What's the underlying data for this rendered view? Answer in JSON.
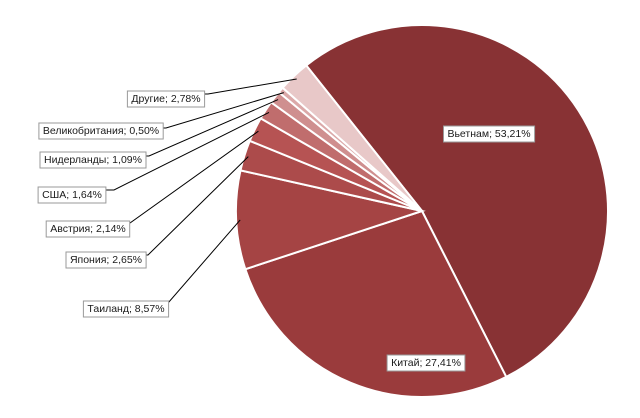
{
  "chart_data": {
    "type": "pie",
    "slices": [
      {
        "label": "Вьетнам; 53,21%",
        "name": "Вьетнам",
        "value": 53.21,
        "color": "#883234"
      },
      {
        "label": "Китай; 27,41%",
        "name": "Китай",
        "value": 27.41,
        "color": "#9a3b3c"
      },
      {
        "label": "Таиланд; 8,57%",
        "name": "Таиланд",
        "value": 8.57,
        "color": "#a54444"
      },
      {
        "label": "Япония; 2,65%",
        "name": "Япония",
        "value": 2.65,
        "color": "#ac4b4b"
      },
      {
        "label": "Австрия; 2,14%",
        "name": "Австрия",
        "value": 2.14,
        "color": "#b65353"
      },
      {
        "label": "США; 1,64%",
        "name": "США",
        "value": 1.64,
        "color": "#c06d6d"
      },
      {
        "label": "Нидерланды; 1,09%",
        "name": "Нидерланды",
        "value": 1.09,
        "color": "#cf8f8f"
      },
      {
        "label": "Великобритания; 0,50%",
        "name": "Великобритания",
        "value": 0.5,
        "color": "#dba9a9"
      },
      {
        "label": "Другие; 2,78%",
        "name": "Другие",
        "value": 2.78,
        "color": "#e8c8c8"
      }
    ]
  }
}
